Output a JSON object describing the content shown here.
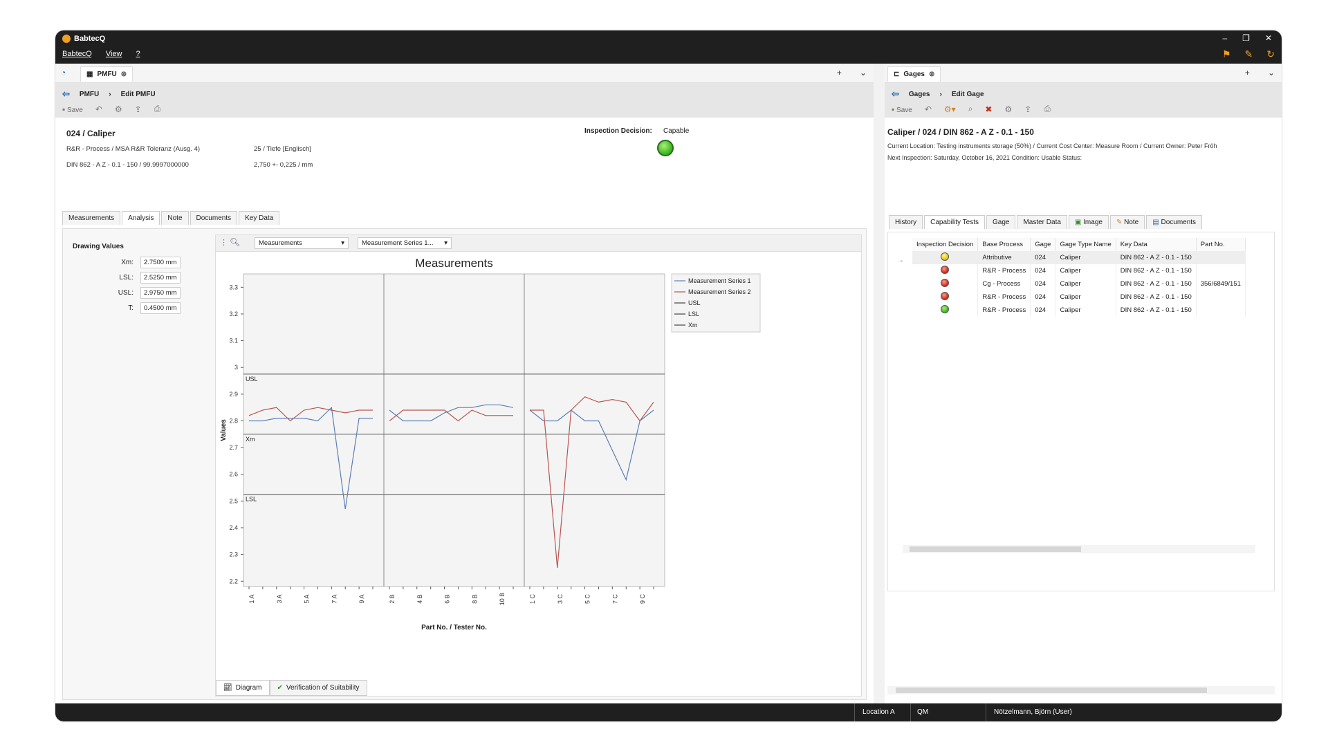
{
  "app": {
    "title": "BabtecQ",
    "menu": [
      "BabtecQ",
      "View",
      "?"
    ]
  },
  "left": {
    "tab_title": "PMFU",
    "breadcrumb": [
      "PMFU",
      "Edit PMFU"
    ],
    "toolbar": {
      "save_label": "Save"
    },
    "item_title": "024 / Caliper",
    "info": {
      "process": "R&R - Process / MSA R&R Toleranz (Ausg. 4)",
      "depth": "25 / Tiefe [Englisch]",
      "key": "DIN 862 - A Z - 0.1 - 150 / 99.9997000000",
      "nominal": "2,750 +- 0,225 / mm"
    },
    "inspection_decision_label": "Inspection Decision:",
    "inspection_decision_value": "Capable",
    "tabs": [
      "Measurements",
      "Analysis",
      "Note",
      "Documents",
      "Key Data"
    ],
    "active_tab": "Analysis",
    "drawing_values": {
      "title": "Drawing Values",
      "rows": [
        {
          "label": "Xm:",
          "value": "2.7500 mm"
        },
        {
          "label": "LSL:",
          "value": "2.5250 mm"
        },
        {
          "label": "USL:",
          "value": "2.9750 mm"
        },
        {
          "label": "T:",
          "value": "0.4500 mm"
        }
      ]
    },
    "chart_toolbar": {
      "combo1": "Measurements",
      "combo2": "Measurement Series 1..."
    },
    "bottom_tabs": [
      "Diagram",
      "Verification of Suitability"
    ]
  },
  "chart_data": {
    "type": "line",
    "title": "Measurements",
    "xlabel": "Part No. / Tester No.",
    "ylabel": "Values",
    "ylim": [
      2.18,
      3.35
    ],
    "yticks": [
      2.2,
      2.3,
      2.4,
      2.5,
      2.6,
      2.7,
      2.8,
      2.9,
      3,
      3.1,
      3.2,
      3.3
    ],
    "x_tick_labels": [
      "1 A",
      "3 A",
      "5 A",
      "7 A",
      "9 A",
      "2 B",
      "4 B",
      "6 B",
      "8 B",
      "10 B",
      "1 C",
      "3 C",
      "5 C",
      "7 C",
      "9 C"
    ],
    "groups": [
      "A",
      "B",
      "C"
    ],
    "points_per_group": 10,
    "reference_lines": [
      {
        "name": "USL",
        "value": 2.975
      },
      {
        "name": "Xm",
        "value": 2.75
      },
      {
        "name": "LSL",
        "value": 2.525
      }
    ],
    "series": [
      {
        "name": "Measurement Series 1",
        "color": "#5a7fb5",
        "values": [
          [
            2.8,
            2.8,
            2.81,
            2.81,
            2.81,
            2.8,
            2.85,
            2.47,
            2.81,
            2.81
          ],
          [
            2.84,
            2.8,
            2.8,
            2.8,
            2.83,
            2.85,
            2.85,
            2.86,
            2.86,
            2.85
          ],
          [
            2.84,
            2.8,
            2.8,
            2.84,
            2.8,
            2.8,
            2.69,
            2.58,
            2.8,
            2.84
          ]
        ]
      },
      {
        "name": "Measurement Series 2",
        "color": "#b85450",
        "values": [
          [
            2.82,
            2.84,
            2.85,
            2.8,
            2.84,
            2.85,
            2.84,
            2.83,
            2.84,
            2.84
          ],
          [
            2.8,
            2.84,
            2.84,
            2.84,
            2.84,
            2.8,
            2.84,
            2.82,
            2.82,
            2.82
          ],
          [
            2.84,
            2.84,
            2.25,
            2.84,
            2.89,
            2.87,
            2.88,
            2.87,
            2.8,
            2.87
          ]
        ]
      }
    ],
    "legend": [
      "Measurement Series 1",
      "Measurement Series 2",
      "USL",
      "LSL",
      "Xm"
    ],
    "legend_placement": "top-right"
  },
  "right": {
    "tab_title": "Gages",
    "breadcrumb": [
      "Gages",
      "Edit Gage"
    ],
    "toolbar": {
      "save_label": "Save"
    },
    "item_title": "Caliper / 024 / DIN 862 - A Z - 0.1 - 150",
    "info_line1": "Current Location: Testing instruments storage (50%) / Current Cost Center: Measure Room / Current Owner: Peter Fröh",
    "info_line2": "Next Inspection: Saturday, October 16, 2021  Condition: Usable    Status:",
    "tabs": [
      "History",
      "Capability Tests",
      "Gage",
      "Master Data",
      "Image",
      "Note",
      "Documents"
    ],
    "active_tab": "Capability Tests",
    "table": {
      "headers": [
        "Inspection Decision",
        "Base Process",
        "Gage",
        "Gage Type Name",
        "Key Data",
        "Part No."
      ],
      "rows": [
        {
          "lamp": "yellow",
          "base_process": "Attributive",
          "gage": "024",
          "type": "Caliper",
          "key": "DIN 862 - A Z - 0.1 - 150",
          "part": ""
        },
        {
          "lamp": "red",
          "base_process": "R&R - Process",
          "gage": "024",
          "type": "Caliper",
          "key": "DIN 862 - A Z - 0.1 - 150",
          "part": ""
        },
        {
          "lamp": "red",
          "base_process": "Cg - Process",
          "gage": "024",
          "type": "Caliper",
          "key": "DIN 862 - A Z - 0.1 - 150",
          "part": "356/6849/151"
        },
        {
          "lamp": "red",
          "base_process": "R&R - Process",
          "gage": "024",
          "type": "Caliper",
          "key": "DIN 862 - A Z - 0.1 - 150",
          "part": ""
        },
        {
          "lamp": "green",
          "base_process": "R&R - Process",
          "gage": "024",
          "type": "Caliper",
          "key": "DIN 862 - A Z - 0.1 - 150",
          "part": ""
        }
      ]
    }
  },
  "statusbar": {
    "location": "Location A",
    "module": "QM",
    "user": "Nötzelmann, Björn (User)"
  }
}
